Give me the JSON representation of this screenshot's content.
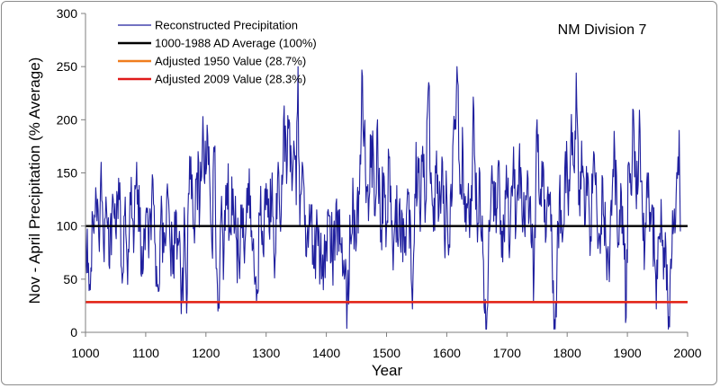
{
  "chart_data": {
    "type": "line",
    "xlabel": "Year",
    "ylabel": "Nov - April Precipitation (% Average)",
    "xlim": [
      1000,
      2000
    ],
    "ylim": [
      0,
      300
    ],
    "x_ticks": [
      "1000",
      "1100",
      "1200",
      "1300",
      "1400",
      "1500",
      "1600",
      "1700",
      "1800",
      "1900",
      "2000"
    ],
    "y_ticks": [
      "0",
      "50",
      "100",
      "150",
      "200",
      "250",
      "300"
    ],
    "annotation": "NM Division 7",
    "grid": false,
    "legend_position": "top-left",
    "series": [
      {
        "name": "Reconstructed Precipitation",
        "kind": "line",
        "color": "#1f1f9e",
        "x_start": 1000,
        "x_end": 1988,
        "anchors": [
          [
            1000,
            100
          ],
          [
            1005,
            65
          ],
          [
            1008,
            40
          ],
          [
            1012,
            110
          ],
          [
            1018,
            125
          ],
          [
            1022,
            90
          ],
          [
            1026,
            160
          ],
          [
            1030,
            80
          ],
          [
            1035,
            115
          ],
          [
            1040,
            60
          ],
          [
            1045,
            130
          ],
          [
            1050,
            95
          ],
          [
            1055,
            145
          ],
          [
            1060,
            60
          ],
          [
            1065,
            110
          ],
          [
            1070,
            45
          ],
          [
            1075,
            120
          ],
          [
            1080,
            75
          ],
          [
            1085,
            160
          ],
          [
            1090,
            95
          ],
          [
            1095,
            55
          ],
          [
            1100,
            110
          ],
          [
            1105,
            70
          ],
          [
            1110,
            125
          ],
          [
            1115,
            85
          ],
          [
            1120,
            45
          ],
          [
            1125,
            105
          ],
          [
            1130,
            75
          ],
          [
            1135,
            130
          ],
          [
            1140,
            90
          ],
          [
            1145,
            55
          ],
          [
            1150,
            115
          ],
          [
            1155,
            85
          ],
          [
            1160,
            40
          ],
          [
            1165,
            95
          ],
          [
            1168,
            18
          ],
          [
            1172,
            130
          ],
          [
            1175,
            165
          ],
          [
            1180,
            100
          ],
          [
            1185,
            150
          ],
          [
            1190,
            120
          ],
          [
            1195,
            203
          ],
          [
            1198,
            140
          ],
          [
            1202,
            195
          ],
          [
            1206,
            150
          ],
          [
            1210,
            80
          ],
          [
            1214,
            170
          ],
          [
            1218,
            60
          ],
          [
            1220,
            20
          ],
          [
            1225,
            110
          ],
          [
            1230,
            75
          ],
          [
            1235,
            140
          ],
          [
            1240,
            100
          ],
          [
            1245,
            135
          ],
          [
            1250,
            90
          ],
          [
            1255,
            65
          ],
          [
            1260,
            120
          ],
          [
            1265,
            85
          ],
          [
            1270,
            140
          ],
          [
            1275,
            90
          ],
          [
            1280,
            60
          ],
          [
            1285,
            40
          ],
          [
            1290,
            110
          ],
          [
            1295,
            75
          ],
          [
            1300,
            140
          ],
          [
            1305,
            95
          ],
          [
            1310,
            150
          ],
          [
            1315,
            70
          ],
          [
            1320,
            160
          ],
          [
            1325,
            110
          ],
          [
            1330,
            213
          ],
          [
            1334,
            140
          ],
          [
            1338,
            200
          ],
          [
            1342,
            160
          ],
          [
            1346,
            180
          ],
          [
            1350,
            120
          ],
          [
            1353,
            250
          ],
          [
            1356,
            100
          ],
          [
            1360,
            160
          ],
          [
            1365,
            110
          ],
          [
            1370,
            80
          ],
          [
            1375,
            120
          ],
          [
            1380,
            60
          ],
          [
            1385,
            100
          ],
          [
            1390,
            70
          ],
          [
            1395,
            40
          ],
          [
            1400,
            85
          ],
          [
            1405,
            110
          ],
          [
            1410,
            70
          ],
          [
            1415,
            90
          ],
          [
            1420,
            115
          ],
          [
            1425,
            75
          ],
          [
            1430,
            50
          ],
          [
            1435,
            35
          ],
          [
            1440,
            90
          ],
          [
            1445,
            120
          ],
          [
            1450,
            85
          ],
          [
            1455,
            130
          ],
          [
            1460,
            241
          ],
          [
            1465,
            150
          ],
          [
            1470,
            105
          ],
          [
            1475,
            185
          ],
          [
            1480,
            110
          ],
          [
            1485,
            200
          ],
          [
            1490,
            85
          ],
          [
            1495,
            150
          ],
          [
            1500,
            100
          ],
          [
            1505,
            165
          ],
          [
            1510,
            80
          ],
          [
            1515,
            125
          ],
          [
            1520,
            90
          ],
          [
            1525,
            115
          ],
          [
            1530,
            75
          ],
          [
            1535,
            135
          ],
          [
            1540,
            100
          ],
          [
            1543,
            22
          ],
          [
            1547,
            130
          ],
          [
            1552,
            165
          ],
          [
            1556,
            95
          ],
          [
            1560,
            175
          ],
          [
            1565,
            120
          ],
          [
            1570,
            235
          ],
          [
            1573,
            140
          ],
          [
            1578,
            95
          ],
          [
            1582,
            150
          ],
          [
            1587,
            110
          ],
          [
            1592,
            165
          ],
          [
            1596,
            90
          ],
          [
            1600,
            130
          ],
          [
            1605,
            80
          ],
          [
            1610,
            175
          ],
          [
            1614,
            200
          ],
          [
            1618,
            237
          ],
          [
            1622,
            130
          ],
          [
            1627,
            170
          ],
          [
            1632,
            95
          ],
          [
            1636,
            140
          ],
          [
            1640,
            100
          ],
          [
            1645,
            210
          ],
          [
            1650,
            110
          ],
          [
            1655,
            150
          ],
          [
            1660,
            75
          ],
          [
            1663,
            18
          ],
          [
            1667,
            20
          ],
          [
            1671,
            95
          ],
          [
            1676,
            140
          ],
          [
            1680,
            110
          ],
          [
            1685,
            155
          ],
          [
            1690,
            105
          ],
          [
            1695,
            95
          ],
          [
            1700,
            130
          ],
          [
            1705,
            85
          ],
          [
            1710,
            150
          ],
          [
            1715,
            100
          ],
          [
            1720,
            160
          ],
          [
            1725,
            110
          ],
          [
            1730,
            90
          ],
          [
            1735,
            145
          ],
          [
            1740,
            85
          ],
          [
            1745,
            55
          ],
          [
            1750,
            200
          ],
          [
            1755,
            120
          ],
          [
            1760,
            160
          ],
          [
            1765,
            90
          ],
          [
            1770,
            130
          ],
          [
            1775,
            70
          ],
          [
            1779,
            12
          ],
          [
            1783,
            60
          ],
          [
            1787,
            130
          ],
          [
            1792,
            85
          ],
          [
            1797,
            170
          ],
          [
            1802,
            110
          ],
          [
            1807,
            205
          ],
          [
            1812,
            150
          ],
          [
            1815,
            244
          ],
          [
            1819,
            120
          ],
          [
            1824,
            180
          ],
          [
            1829,
            100
          ],
          [
            1834,
            150
          ],
          [
            1839,
            90
          ],
          [
            1844,
            170
          ],
          [
            1849,
            120
          ],
          [
            1854,
            90
          ],
          [
            1859,
            145
          ],
          [
            1864,
            85
          ],
          [
            1869,
            65
          ],
          [
            1874,
            110
          ],
          [
            1879,
            170
          ],
          [
            1884,
            80
          ],
          [
            1889,
            140
          ],
          [
            1894,
            100
          ],
          [
            1898,
            14
          ],
          [
            1902,
            160
          ],
          [
            1906,
            130
          ],
          [
            1909,
            210
          ],
          [
            1913,
            170
          ],
          [
            1917,
            130
          ],
          [
            1921,
            190
          ],
          [
            1925,
            110
          ],
          [
            1929,
            80
          ],
          [
            1933,
            150
          ],
          [
            1937,
            95
          ],
          [
            1941,
            120
          ],
          [
            1945,
            70
          ],
          [
            1948,
            22
          ],
          [
            1952,
            90
          ],
          [
            1956,
            125
          ],
          [
            1960,
            50
          ],
          [
            1964,
            80
          ],
          [
            1967,
            30
          ],
          [
            1970,
            5
          ],
          [
            1973,
            60
          ],
          [
            1977,
            100
          ],
          [
            1981,
            130
          ],
          [
            1984,
            165
          ],
          [
            1986,
            190
          ],
          [
            1988,
            95
          ]
        ]
      },
      {
        "name": "1000-1988 AD Average (100%)",
        "kind": "hline",
        "value": 100,
        "color": "#000000"
      },
      {
        "name": "Adjusted 1950 Value  (28.7%)",
        "kind": "hline",
        "value": 28.7,
        "color": "#f07d1e"
      },
      {
        "name": "Adjusted 2009 Value  (28.3%)",
        "kind": "hline",
        "value": 28.3,
        "color": "#e01a1a"
      }
    ]
  }
}
